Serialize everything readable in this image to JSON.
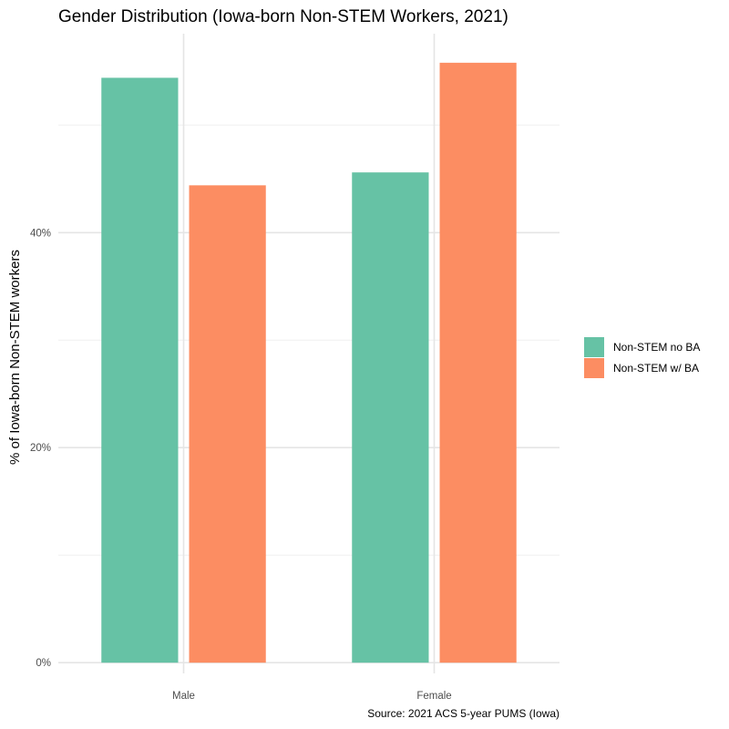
{
  "chart_data": {
    "type": "bar",
    "title": "Gender Distribution (Iowa-born Non-STEM Workers, 2021)",
    "xlabel": "",
    "ylabel": "% of Iowa-born Non-STEM workers",
    "caption": "Source: 2021 ACS 5-year PUMS (Iowa)",
    "categories": [
      "Male",
      "Female"
    ],
    "series": [
      {
        "name": "Non-STEM no BA",
        "color": "#66c2a5",
        "values": [
          54.4,
          45.6
        ]
      },
      {
        "name": "Non-STEM w/ BA",
        "color": "#fc8d62",
        "values": [
          44.4,
          55.8
        ]
      }
    ],
    "yticks": [
      0,
      20,
      40
    ],
    "ytick_labels": [
      "0%",
      "20%",
      "40%"
    ],
    "ylim": [
      -1.0,
      58.5
    ],
    "grid": true,
    "legend_position": "right"
  }
}
